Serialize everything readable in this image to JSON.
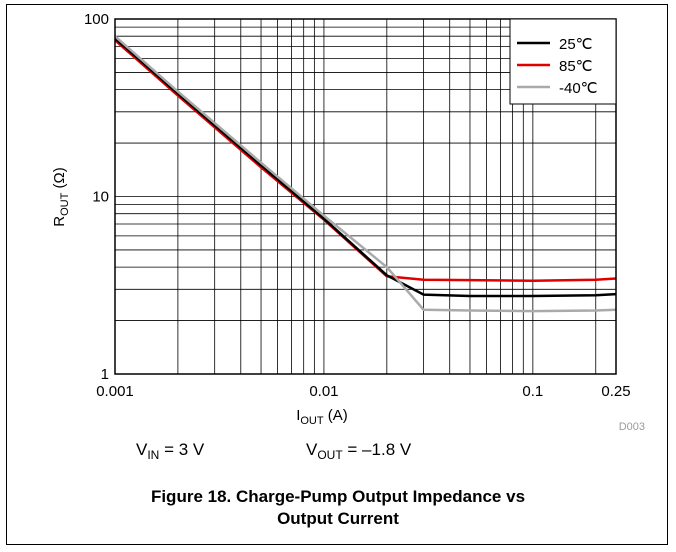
{
  "chart_data": {
    "type": "line",
    "x_axis": {
      "label": {
        "main": "I",
        "sub": "OUT",
        "tail": " (A)"
      },
      "scale": "log",
      "range": [
        0.001,
        0.25
      ],
      "tick_values": [
        0.001,
        0.01,
        0.1,
        0.25
      ],
      "tick_labels": [
        "0.001",
        "0.01",
        "0.1",
        "0.25"
      ]
    },
    "y_axis": {
      "label": {
        "main": "R",
        "sub": "OUT",
        "tail": " (Ω)"
      },
      "scale": "log",
      "range": [
        1,
        100
      ],
      "tick_values": [
        1,
        10,
        100
      ],
      "tick_labels": [
        "1",
        "10",
        "100"
      ]
    },
    "grid": true,
    "legend_position": "top-right",
    "series": [
      {
        "name": "25℃",
        "color": "#000000",
        "points": [
          [
            0.001,
            78
          ],
          [
            0.002,
            38
          ],
          [
            0.005,
            15
          ],
          [
            0.01,
            7.5
          ],
          [
            0.02,
            3.6
          ],
          [
            0.03,
            2.8
          ],
          [
            0.05,
            2.75
          ],
          [
            0.1,
            2.75
          ],
          [
            0.2,
            2.78
          ],
          [
            0.25,
            2.82
          ]
        ]
      },
      {
        "name": "85℃",
        "color": "#e00000",
        "points": [
          [
            0.001,
            76
          ],
          [
            0.002,
            37
          ],
          [
            0.005,
            14.6
          ],
          [
            0.01,
            7.4
          ],
          [
            0.02,
            3.55
          ],
          [
            0.03,
            3.4
          ],
          [
            0.05,
            3.38
          ],
          [
            0.1,
            3.35
          ],
          [
            0.2,
            3.4
          ],
          [
            0.25,
            3.45
          ]
        ]
      },
      {
        "name": "-40℃",
        "color": "#aaaaaa",
        "points": [
          [
            0.001,
            80
          ],
          [
            0.002,
            39
          ],
          [
            0.005,
            15.5
          ],
          [
            0.01,
            7.8
          ],
          [
            0.02,
            4.0
          ],
          [
            0.03,
            2.3
          ],
          [
            0.05,
            2.28
          ],
          [
            0.1,
            2.26
          ],
          [
            0.2,
            2.28
          ],
          [
            0.25,
            2.3
          ]
        ]
      }
    ],
    "annotation": "D003"
  },
  "conditions": {
    "vin": {
      "main": "V",
      "sub": "IN",
      "tail": " = 3 V"
    },
    "vout": {
      "main": "V",
      "sub": "OUT",
      "tail": " = –1.8 V"
    }
  },
  "caption": {
    "line1": "Figure 18. Charge-Pump Output Impedance vs",
    "line2": "Output Current"
  }
}
